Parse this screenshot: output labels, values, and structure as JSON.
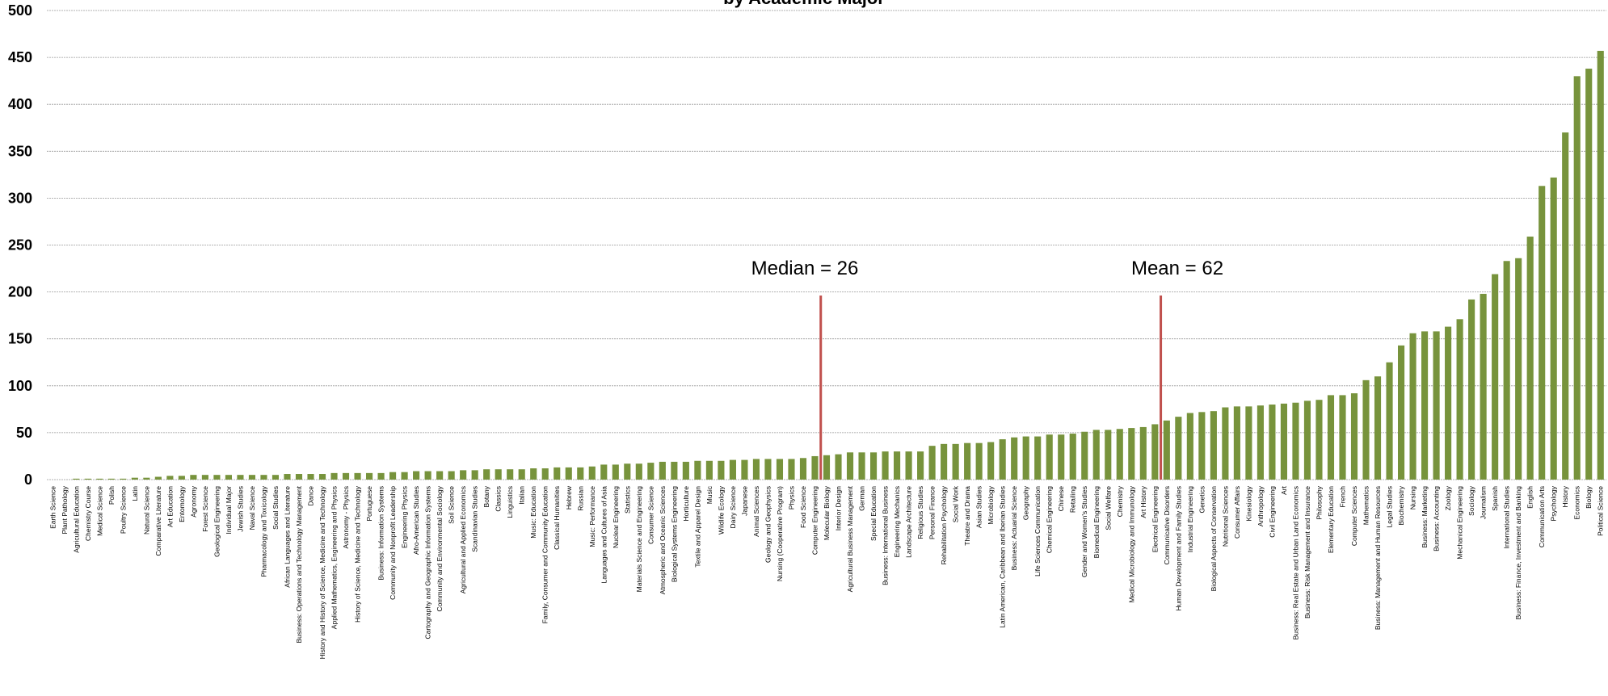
{
  "chart_data": {
    "type": "bar",
    "title": "by Academic Major",
    "categories": [
      "Earth Science",
      "Plant Pathology",
      "Agricultural Education",
      "Chemistry Course",
      "Medical Science",
      "Polish",
      "Poultry Science",
      "Latin",
      "Natural Science",
      "Comparative Literature",
      "Art Education",
      "Entomology",
      "Agronomy",
      "Forest Science",
      "Geological Engineering",
      "Individual Major",
      "Jewish Studies",
      "Naval Science",
      "Pharmacology and Toxicology",
      "Social Studies",
      "African Languages and Literature",
      "Business: Operations and Technology Management",
      "Dance",
      "History and History of Science, Medicine and Technology",
      "Applied Mathematics, Engineering and Physics",
      "Astronomy - Physics",
      "History of Science, Medicine and Technology",
      "Portuguese",
      "Business: Information Systems",
      "Community and Nonprofit Leadership",
      "Engineering Physics",
      "Afro-American Studies",
      "Cartography and Geographic Information Systems",
      "Community and Environmental Sociology",
      "Soil Science",
      "Agricultural and Applied Economics",
      "Scandinavian Studies",
      "Botany",
      "Classics",
      "Linguistics",
      "Italian",
      "Music: Education",
      "Family, Consumer and Community Education",
      "Classical Humanities",
      "Hebrew",
      "Russian",
      "Music: Performance",
      "Languages and Cultures of Asia",
      "Nuclear Engineering",
      "Statistics",
      "Materials Science and Engineering",
      "Consumer Science",
      "Atmospheric and Oceanic Sciences",
      "Biological Systems Engineering",
      "Horticulture",
      "Textile and Apparel Design",
      "Music",
      "Wildlife Ecology",
      "Dairy Science",
      "Japanese",
      "Animal Sciences",
      "Geology and Geophysics",
      "Nursing (Cooperative Program)",
      "Physics",
      "Food Science",
      "Computer Engineering",
      "Molecular Biology",
      "Interior Design",
      "Agricultural Business Management",
      "German",
      "Special Education",
      "Business: International Business",
      "Engineering Mechanics",
      "Landscape Architecture",
      "Religious Studies",
      "Personal Finance",
      "Rehabilitation Psychology",
      "Social Work",
      "Theatre and Drama",
      "Asian Studies",
      "Microbiology",
      "Latin American, Caribbean and Iberian Studies",
      "Business: Actuarial Science",
      "Geography",
      "Life Sciences Communication",
      "Chemical Engineering",
      "Chinese",
      "Retailing",
      "Gender and Women's Studies",
      "Biomedical Engineering",
      "Social Welfare",
      "Chemistry",
      "Medical Microbiology and Immunology",
      "Art History",
      "Electrical Engineering",
      "Communicative Disorders",
      "Human Development and Family Studies",
      "Industrial Engineering",
      "Genetics",
      "Biological Aspects of Conservation",
      "Nutritional Sciences",
      "Consumer Affairs",
      "Kinesiology",
      "Anthropology",
      "Civil Engineering",
      "Art",
      "Business: Real Estate and Urban Land Economics",
      "Business: Risk Management and Insurance",
      "Philosophy",
      "Elementary Education",
      "French",
      "Computer Sciences",
      "Mathematics",
      "Business: Management and Human Resources",
      "Legal Studies",
      "Biochemistry",
      "Nursing",
      "Business: Marketing",
      "Business: Accounting",
      "Zoology",
      "Mechanical Engineering",
      "Sociology",
      "Journalism",
      "Spanish",
      "International Studies",
      "Business: Finance, Investment and Banking",
      "English",
      "Communication Arts",
      "Psychology",
      "History",
      "Economics",
      "Biology",
      "Political Science"
    ],
    "values": [
      0,
      0,
      1,
      1,
      1,
      1,
      1,
      2,
      2,
      3,
      4,
      4,
      5,
      5,
      5,
      5,
      5,
      5,
      5,
      5,
      6,
      6,
      6,
      6,
      7,
      7,
      7,
      7,
      7,
      8,
      8,
      9,
      9,
      9,
      9,
      10,
      10,
      11,
      11,
      11,
      11,
      12,
      12,
      13,
      13,
      13,
      14,
      16,
      16,
      17,
      17,
      18,
      19,
      19,
      19,
      20,
      20,
      20,
      21,
      21,
      22,
      22,
      22,
      22,
      23,
      25,
      26,
      27,
      29,
      29,
      29,
      30,
      30,
      30,
      30,
      36,
      38,
      38,
      39,
      39,
      40,
      43,
      45,
      46,
      46,
      48,
      48,
      49,
      51,
      53,
      53,
      54,
      55,
      56,
      59,
      63,
      67,
      71,
      72,
      73,
      77,
      78,
      78,
      79,
      80,
      81,
      82,
      84,
      85,
      90,
      90,
      92,
      106,
      110,
      125,
      143,
      156,
      158,
      158,
      163,
      171,
      192,
      198,
      219,
      233,
      236,
      259,
      313,
      322,
      370,
      430,
      438,
      457
    ],
    "color": "#77933c",
    "ylim": [
      0,
      500
    ],
    "yticks": [
      0,
      50,
      100,
      150,
      200,
      250,
      300,
      350,
      400,
      450,
      500
    ],
    "grid": true,
    "annotations": [
      "Median = 26",
      "Mean = 62"
    ]
  }
}
